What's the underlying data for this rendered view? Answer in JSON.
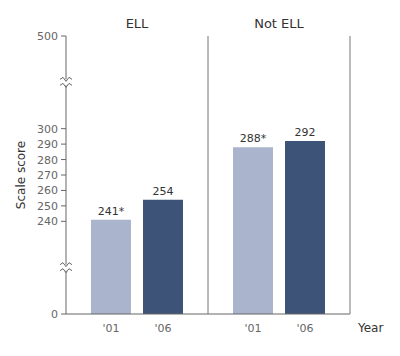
{
  "chart_data": {
    "type": "bar",
    "categories": [
      "ELL",
      "Not ELL"
    ],
    "series": [
      {
        "name": "'01",
        "color": "#aab4cc",
        "values": [
          241,
          288
        ],
        "value_labels": [
          "241*",
          "288*"
        ]
      },
      {
        "name": "'06",
        "color": "#3d5478",
        "values": [
          254,
          292
        ],
        "value_labels": [
          "254",
          "292"
        ]
      }
    ],
    "xlabel": "Year",
    "ylabel": "Scale score",
    "ylim": [
      0,
      500
    ],
    "yticks": [
      0,
      240,
      250,
      260,
      270,
      280,
      290,
      300,
      500
    ],
    "data_labels": true
  }
}
